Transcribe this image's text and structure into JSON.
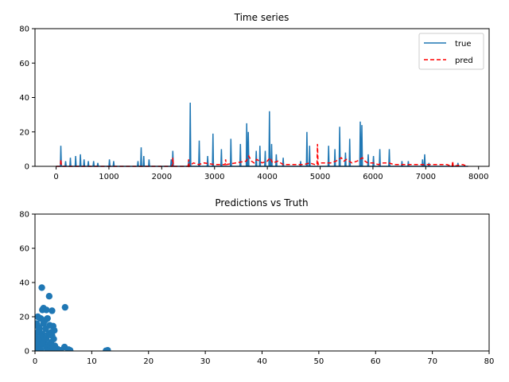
{
  "chart_data": [
    {
      "type": "line",
      "title": "Time series",
      "xlabel": "",
      "ylabel": "",
      "xlim": [
        -400,
        8200
      ],
      "ylim": [
        0,
        80
      ],
      "x_ticks": [
        0,
        1000,
        2000,
        3000,
        4000,
        5000,
        6000,
        7000,
        8000
      ],
      "y_ticks": [
        0,
        20,
        40,
        60,
        80
      ],
      "grid": false,
      "legend": "top-right",
      "series": [
        {
          "name": "true",
          "color": "#1f77b4",
          "style": "solid",
          "x": [
            0,
            80,
            90,
            100,
            170,
            180,
            190,
            260,
            270,
            280,
            360,
            370,
            380,
            450,
            460,
            470,
            520,
            530,
            540,
            600,
            610,
            620,
            700,
            710,
            720,
            780,
            790,
            800,
            1000,
            1010,
            1020,
            1080,
            1090,
            1100,
            1540,
            1550,
            1560,
            1600,
            1610,
            1620,
            1650,
            1660,
            1670,
            1750,
            1760,
            1770,
            2170,
            2180,
            2190,
            2200,
            2210,
            2220,
            2500,
            2510,
            2520,
            2530,
            2540,
            2550,
            2700,
            2710,
            2720,
            2860,
            2870,
            2880,
            2960,
            2970,
            2980,
            3120,
            3130,
            3140,
            3300,
            3310,
            3320,
            3480,
            3490,
            3500,
            3600,
            3610,
            3620,
            3630,
            3640,
            3650,
            3780,
            3790,
            3800,
            3850,
            3860,
            3870,
            3950,
            3960,
            3970,
            4030,
            4040,
            4050,
            4070,
            4080,
            4090,
            4160,
            4170,
            4180,
            4290,
            4300,
            4310,
            4620,
            4630,
            4640,
            4740,
            4750,
            4760,
            4790,
            4800,
            4810,
            5150,
            5160,
            5170,
            5270,
            5280,
            5290,
            5360,
            5370,
            5380,
            5470,
            5480,
            5490,
            5550,
            5560,
            5570,
            5750,
            5760,
            5770,
            5780,
            5790,
            5800,
            5900,
            5910,
            5920,
            6000,
            6010,
            6020,
            6120,
            6130,
            6140,
            6300,
            6310,
            6320,
            6540,
            6550,
            6560,
            6660,
            6670,
            6680,
            6930,
            6940,
            6950,
            6970,
            6980,
            6990,
            7050,
            7060,
            7070,
            7600,
            7610,
            7620,
            7800
          ],
          "y": [
            0,
            0,
            12,
            0,
            0,
            3,
            0,
            0,
            5,
            0,
            0,
            6,
            0,
            0,
            7,
            0,
            0,
            4,
            0,
            0,
            3,
            0,
            0,
            3,
            0,
            0,
            2,
            0,
            0,
            4,
            0,
            0,
            3,
            0,
            0,
            3,
            0,
            0,
            11,
            0,
            0,
            6,
            0,
            0,
            4,
            0,
            0,
            4,
            0,
            0,
            9,
            0,
            0,
            3,
            0,
            0,
            37,
            0,
            0,
            15,
            0,
            0,
            6,
            0,
            0,
            19,
            0,
            0,
            10,
            0,
            0,
            16,
            0,
            0,
            13,
            0,
            0,
            25,
            0,
            0,
            20,
            0,
            0,
            9,
            0,
            0,
            12,
            0,
            0,
            9,
            0,
            0,
            32,
            0,
            0,
            13,
            0,
            0,
            7,
            0,
            0,
            5,
            0,
            0,
            3,
            0,
            0,
            20,
            0,
            0,
            12,
            0,
            0,
            12,
            0,
            0,
            10,
            0,
            0,
            23,
            0,
            0,
            8,
            0,
            0,
            16,
            0,
            0,
            26,
            0,
            0,
            24,
            0,
            0,
            7,
            0,
            0,
            6,
            0,
            0,
            10,
            0,
            0,
            10,
            0,
            0,
            3,
            0,
            0,
            3,
            0,
            0,
            4,
            0,
            0,
            7,
            0,
            0,
            2,
            0,
            0,
            2,
            0,
            0
          ]
        },
        {
          "name": "pred",
          "color": "#ff0000",
          "style": "dashed",
          "x": [
            0,
            80,
            90,
            100,
            2000,
            2200,
            2210,
            2220,
            2300,
            2500,
            2510,
            2520,
            2600,
            2700,
            2800,
            3000,
            3200,
            3210,
            3220,
            3400,
            3600,
            3650,
            3700,
            3750,
            3800,
            3900,
            4000,
            4050,
            4100,
            4200,
            4300,
            4500,
            4600,
            4700,
            4800,
            4900,
            4940,
            4950,
            4960,
            5000,
            5200,
            5300,
            5350,
            5400,
            5450,
            5500,
            5600,
            5700,
            5800,
            5850,
            5900,
            6000,
            6100,
            6200,
            6300,
            6400,
            6500,
            6600,
            6700,
            7000,
            7200,
            7400,
            7500,
            7510,
            7520,
            7700,
            7800
          ],
          "y": [
            0,
            0,
            4,
            0,
            0,
            0,
            5,
            0,
            0,
            0,
            4,
            0,
            2,
            1,
            2,
            1,
            1,
            4,
            1,
            2,
            3,
            6,
            3,
            2,
            4,
            2,
            3,
            5,
            2,
            3,
            1,
            1,
            1,
            1,
            2,
            1,
            1,
            13,
            1,
            2,
            2,
            3,
            4,
            5,
            3,
            4,
            2,
            3,
            5,
            3,
            2,
            2,
            1,
            2,
            2,
            1,
            1,
            1,
            1,
            1,
            1,
            1,
            0,
            3,
            0,
            1,
            0
          ]
        }
      ]
    },
    {
      "type": "scatter",
      "title": "Predictions vs Truth",
      "xlabel": "",
      "ylabel": "",
      "xlim": [
        0,
        80
      ],
      "ylim": [
        0,
        80
      ],
      "x_ticks": [
        0,
        10,
        20,
        30,
        40,
        50,
        60,
        70,
        80
      ],
      "y_ticks": [
        0,
        20,
        40,
        60,
        80
      ],
      "grid": false,
      "legend": "none",
      "color": "#1f77b4",
      "points": [
        [
          1.2,
          37
        ],
        [
          1.3,
          24
        ],
        [
          1.5,
          25
        ],
        [
          2,
          24
        ],
        [
          2.5,
          32
        ],
        [
          3,
          23.5
        ],
        [
          5.3,
          25.5
        ],
        [
          0.5,
          20
        ],
        [
          1,
          19
        ],
        [
          1.8,
          18
        ],
        [
          2.2,
          19
        ],
        [
          0.3,
          16
        ],
        [
          1.5,
          16
        ],
        [
          2.6,
          15
        ],
        [
          3.2,
          14.5
        ],
        [
          0.8,
          13
        ],
        [
          1.9,
          13
        ],
        [
          3.4,
          12
        ],
        [
          0.5,
          11
        ],
        [
          1.3,
          10
        ],
        [
          2.4,
          10
        ],
        [
          3,
          9
        ],
        [
          0.2,
          8
        ],
        [
          1.1,
          8
        ],
        [
          2,
          7.5
        ],
        [
          3.3,
          7
        ],
        [
          0.6,
          6
        ],
        [
          1.7,
          6
        ],
        [
          2.8,
          5
        ],
        [
          0.4,
          4
        ],
        [
          1.4,
          4
        ],
        [
          2.5,
          3.5
        ],
        [
          3.5,
          3
        ],
        [
          0.8,
          2
        ],
        [
          2,
          2
        ],
        [
          3,
          1.5
        ],
        [
          4,
          1
        ],
        [
          5.2,
          2.3
        ],
        [
          5.9,
          0.8
        ],
        [
          6.2,
          0.3
        ],
        [
          0.2,
          1
        ],
        [
          1,
          0.5
        ],
        [
          2.2,
          0.3
        ],
        [
          3.5,
          0.2
        ],
        [
          4.5,
          0.4
        ],
        [
          12.8,
          0.4
        ],
        [
          12.5,
          0.1
        ],
        [
          0.1,
          0.1
        ],
        [
          0.6,
          14
        ],
        [
          2.9,
          11
        ]
      ]
    }
  ]
}
